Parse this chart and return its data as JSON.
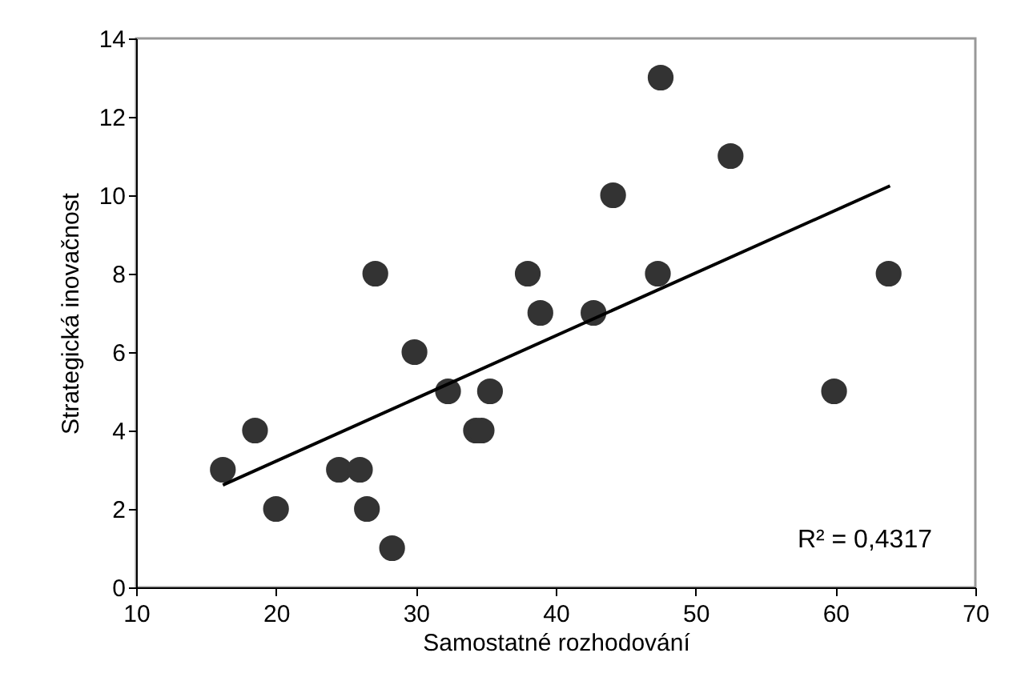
{
  "chart_data": {
    "type": "scatter",
    "xlabel": "Samostatné rozhodování",
    "ylabel": "Strategická inovačnost",
    "x": [
      16.2,
      18.5,
      20.0,
      24.5,
      26.0,
      26.5,
      27.1,
      28.3,
      29.9,
      32.3,
      34.3,
      34.7,
      35.3,
      38.0,
      38.9,
      42.7,
      44.1,
      47.3,
      47.5,
      52.5,
      59.9,
      63.8
    ],
    "series": [
      {
        "color": "#333333",
        "marker": "circle",
        "values": [
          3,
          4,
          2,
          3,
          3,
          2,
          8,
          1,
          6,
          5,
          4,
          4,
          5,
          8,
          7,
          7,
          10,
          8,
          13,
          11,
          5,
          8
        ]
      },
      {
        "type": "line",
        "color": "#000000",
        "x": [
          16.2,
          63.9
        ],
        "values": [
          2.61,
          10.24
        ]
      }
    ],
    "xlim": [
      10,
      70
    ],
    "xticks": [
      10,
      20,
      30,
      40,
      50,
      60,
      70
    ],
    "ylim": [
      0,
      14
    ],
    "yticks": [
      0,
      2,
      4,
      6,
      8,
      10,
      12,
      14
    ],
    "annotations": [
      "R² = 0,4317"
    ],
    "grid": false
  }
}
